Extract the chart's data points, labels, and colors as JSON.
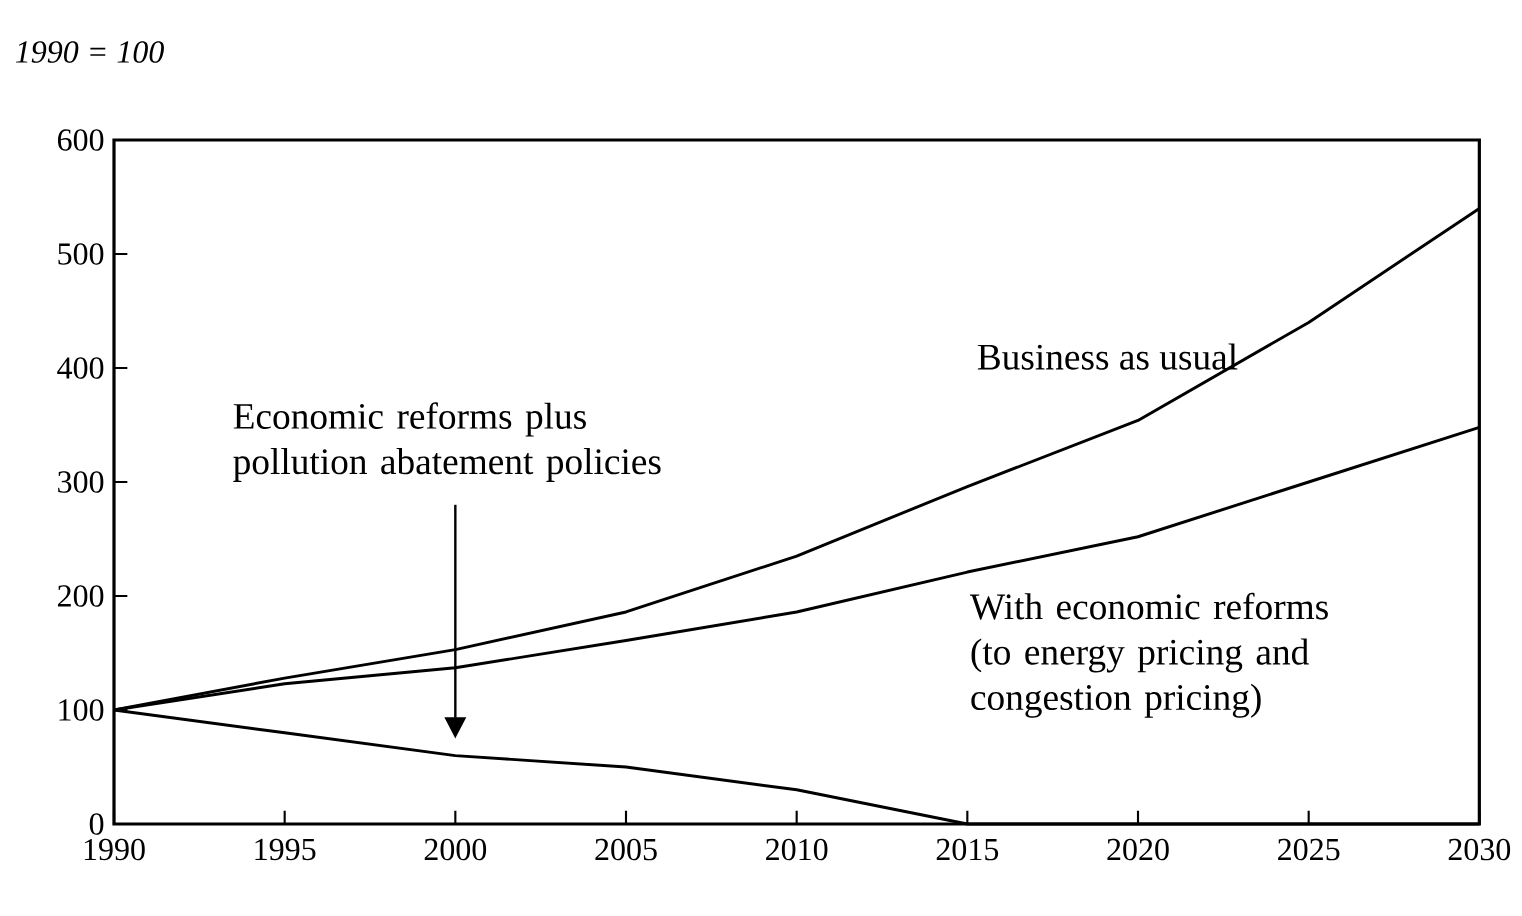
{
  "chart_data": {
    "type": "line",
    "ylabel": "1990 = 100",
    "x": [
      1990,
      1995,
      2000,
      2005,
      2010,
      2015,
      2020,
      2025,
      2030
    ],
    "series": [
      {
        "name": "Business as usual",
        "color": "#000000",
        "values": [
          100,
          128,
          153,
          186,
          235,
          296,
          354,
          440,
          540
        ]
      },
      {
        "name": "With economic reforms (to energy pricing and congestion pricing)",
        "color": "#000000",
        "values": [
          100,
          123,
          137,
          161,
          186,
          221,
          252,
          300,
          348
        ]
      },
      {
        "name": "Economic reforms plus pollution abatement policies",
        "color": "#000000",
        "values": [
          100,
          80,
          60,
          50,
          30,
          0,
          0,
          0,
          0
        ]
      }
    ],
    "xlim": [
      1990,
      2030
    ],
    "xticks": [
      1990,
      1995,
      2000,
      2005,
      2010,
      2015,
      2020,
      2025,
      2030
    ],
    "ylim": [
      0,
      600
    ],
    "yticks": [
      0,
      100,
      200,
      300,
      400,
      500,
      600
    ],
    "grid": false,
    "marker": "none",
    "line_style": "solid"
  }
}
